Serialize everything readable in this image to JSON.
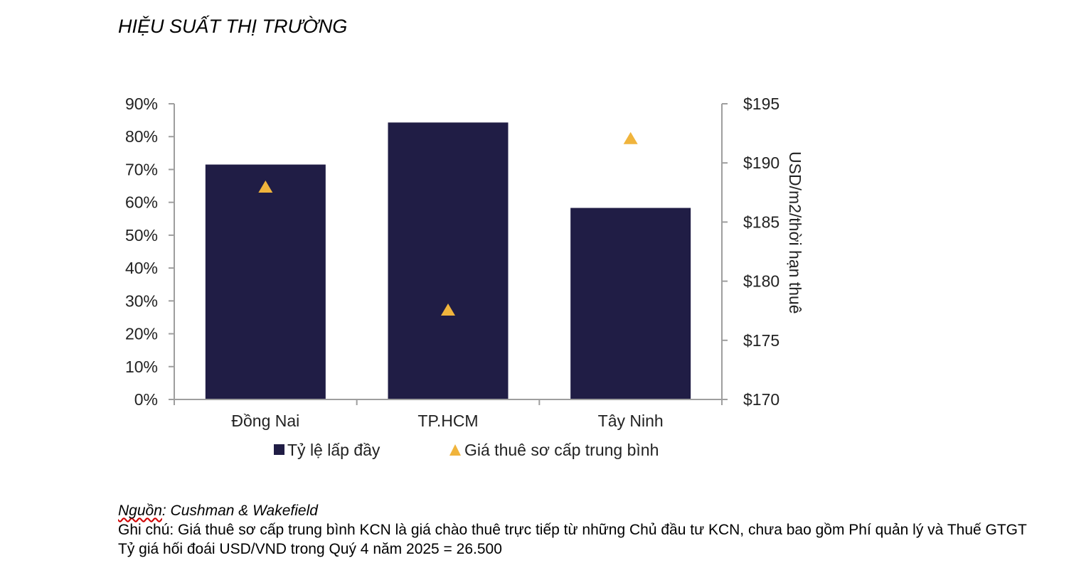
{
  "page": {
    "title": "HIỆU SUẤT THỊ TRƯỜNG"
  },
  "chart_data": {
    "type": "bar",
    "categories": [
      "Đồng Nai",
      "TP.HCM",
      "Tây Ninh"
    ],
    "series": [
      {
        "name": "Tỷ lệ lấp đầy",
        "type": "bar",
        "axis": "left",
        "values": [
          71.5,
          84.3,
          58.3
        ],
        "color": "#201d45"
      },
      {
        "name": "Giá thuê sơ cấp trung bình",
        "type": "scatter",
        "marker": "triangle",
        "axis": "right",
        "values": [
          188,
          177.6,
          192.1
        ],
        "color": "#f0b43c"
      }
    ],
    "y_left": {
      "ylim": [
        0,
        90
      ],
      "ticks": [
        0,
        10,
        20,
        30,
        40,
        50,
        60,
        70,
        80,
        90
      ],
      "tick_labels": [
        "0%",
        "10%",
        "20%",
        "30%",
        "40%",
        "50%",
        "60%",
        "70%",
        "80%",
        "90%"
      ]
    },
    "y_right": {
      "ylim": [
        170,
        195
      ],
      "ticks": [
        170,
        175,
        180,
        185,
        190,
        195
      ],
      "tick_labels": [
        "$170",
        "$175",
        "$180",
        "$185",
        "$190",
        "$195"
      ],
      "label": "USD/m2/thời hạn thuê"
    },
    "legend_position": "bottom",
    "grid": false,
    "axis_color": "#9e9e9e"
  },
  "notes": {
    "source_label": "Nguồn",
    "source_value": ": Cushman & Wakefield",
    "note": "Ghi chú: Giá thuê sơ cấp trung bình KCN là giá chào thuê trực tiếp từ những Chủ đầu tư KCN, chưa bao gồm Phí quản lý và Thuế GTGT",
    "exchange": "Tỷ giá hối đoái USD/VND trong Quý 4 năm 2025 = 26.500"
  }
}
